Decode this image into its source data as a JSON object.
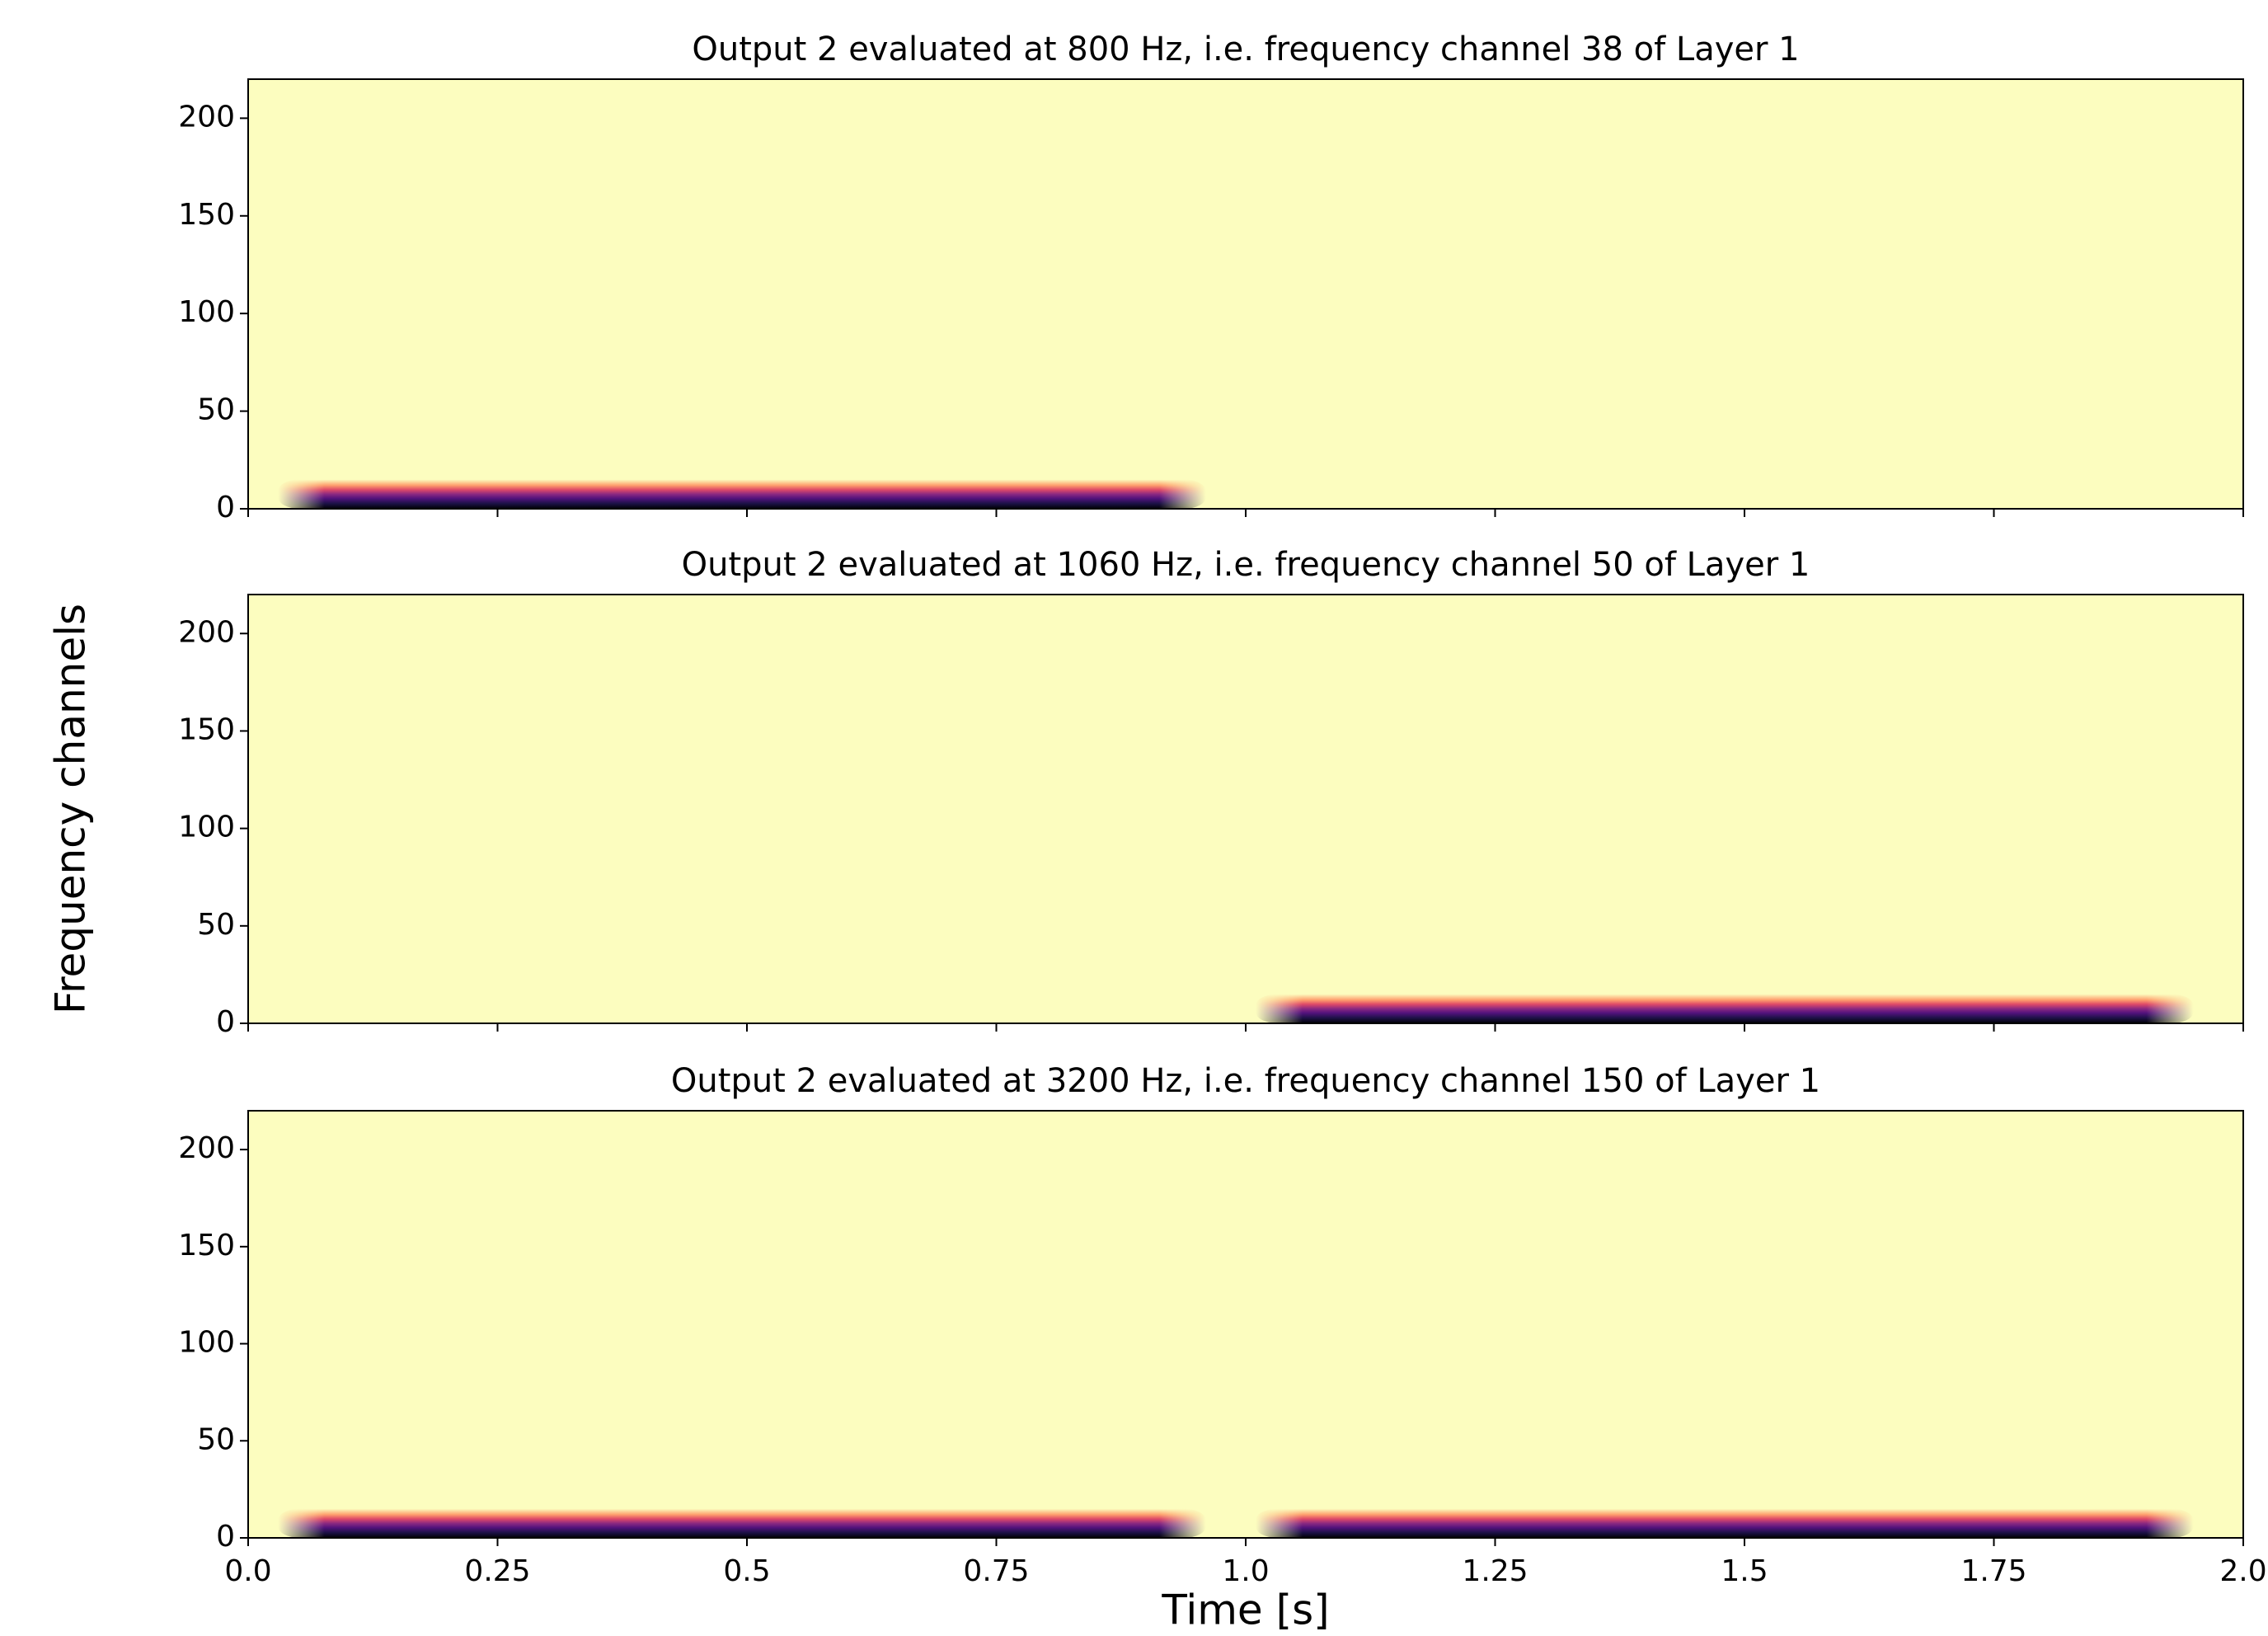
{
  "chart_data": [
    {
      "type": "heatmap",
      "title": "Output 2 evaluated at 800 Hz, i.e. frequency channel 38 of Layer 1",
      "background": "#fcfdbf",
      "ylim": [
        0,
        220
      ],
      "yticks": [
        0,
        50,
        100,
        150,
        200
      ],
      "xlim": [
        0,
        2
      ],
      "xticks": [
        0,
        0.25,
        0.5,
        0.75,
        1,
        1.25,
        1.5,
        1.75,
        2
      ],
      "bands": [
        {
          "x": [
            0.03,
            0.96
          ],
          "top": 15
        }
      ]
    },
    {
      "type": "heatmap",
      "title": "Output 2 evaluated at 1060 Hz, i.e. frequency channel 50 of Layer 1",
      "ylabel": "Frequency channels",
      "background": "#fcfdbf",
      "ylim": [
        0,
        220
      ],
      "yticks": [
        0,
        50,
        100,
        150,
        200
      ],
      "xlim": [
        0,
        2
      ],
      "xticks": [
        0,
        0.25,
        0.5,
        0.75,
        1,
        1.25,
        1.5,
        1.75,
        2
      ],
      "bands": [
        {
          "x": [
            1.01,
            1.95
          ],
          "top": 15
        }
      ]
    },
    {
      "type": "heatmap",
      "title": "Output 2 evaluated at 3200 Hz, i.e. frequency channel 150 of Layer 1",
      "xlabel": "Time [s]",
      "background": "#fcfdbf",
      "ylim": [
        0,
        220
      ],
      "yticks": [
        0,
        50,
        100,
        150,
        200
      ],
      "xlim": [
        0,
        2
      ],
      "xticks": [
        {
          "value": 0,
          "label": "0.0"
        },
        0.25,
        0.5,
        0.75,
        {
          "value": 1,
          "label": "1.0"
        },
        1.25,
        1.5,
        1.75,
        {
          "value": 2,
          "label": "2.0"
        }
      ],
      "bands": [
        {
          "x": [
            0.03,
            0.96
          ],
          "top": 15
        },
        {
          "x": [
            1.01,
            1.95
          ],
          "top": 15
        }
      ]
    }
  ]
}
